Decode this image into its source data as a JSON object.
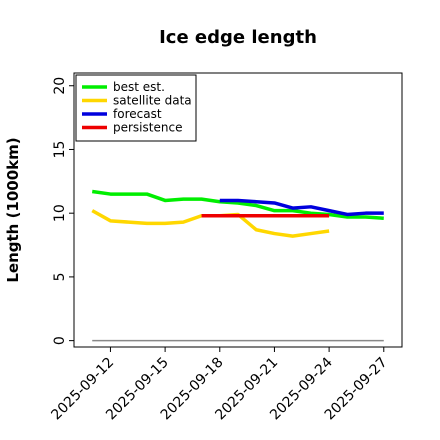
{
  "chart_data": {
    "type": "line",
    "title": "Ice edge length",
    "xlabel": "",
    "ylabel": "Length (1000km)",
    "ylim": [
      -0.5,
      21
    ],
    "xlim": [
      "2025-09-10",
      "2025-09-28"
    ],
    "grid": false,
    "legend_position": "top-left",
    "y_ticks": [
      0,
      5,
      10,
      15,
      20
    ],
    "x_ticks": [
      "2025-09-12",
      "2025-09-15",
      "2025-09-18",
      "2025-09-21",
      "2025-09-24",
      "2025-09-27"
    ],
    "highlighted_x_tick": "2025-09-18",
    "highlight_color": "#228b22",
    "series": [
      {
        "name": "best est.",
        "color": "#00ee00",
        "x": [
          "2025-09-11",
          "2025-09-12",
          "2025-09-13",
          "2025-09-14",
          "2025-09-15",
          "2025-09-16",
          "2025-09-17",
          "2025-09-18",
          "2025-09-19",
          "2025-09-20",
          "2025-09-21",
          "2025-09-22",
          "2025-09-23",
          "2025-09-24",
          "2025-09-25",
          "2025-09-26",
          "2025-09-27"
        ],
        "values": [
          11.7,
          11.5,
          11.5,
          11.5,
          11.0,
          11.1,
          11.1,
          10.9,
          10.8,
          10.6,
          10.2,
          10.2,
          10.0,
          9.9,
          9.7,
          9.7,
          9.6
        ]
      },
      {
        "name": "satellite data",
        "color": "#ffd700",
        "x": [
          "2025-09-11",
          "2025-09-12",
          "2025-09-13",
          "2025-09-14",
          "2025-09-15",
          "2025-09-16",
          "2025-09-17",
          "2025-09-18",
          "2025-09-19",
          "2025-09-20",
          "2025-09-21",
          "2025-09-22",
          "2025-09-23",
          "2025-09-24"
        ],
        "values": [
          10.2,
          9.4,
          9.3,
          9.2,
          9.2,
          9.3,
          9.8,
          9.8,
          9.9,
          8.7,
          8.4,
          8.2,
          8.4,
          8.6
        ]
      },
      {
        "name": "forecast",
        "color": "#0000dd",
        "x": [
          "2025-09-18",
          "2025-09-19",
          "2025-09-20",
          "2025-09-21",
          "2025-09-22",
          "2025-09-23",
          "2025-09-24",
          "2025-09-25",
          "2025-09-26",
          "2025-09-27"
        ],
        "values": [
          11.0,
          11.0,
          10.9,
          10.8,
          10.4,
          10.5,
          10.2,
          9.9,
          10.0,
          10.0
        ]
      },
      {
        "name": "persistence",
        "color": "#ee0000",
        "x": [
          "2025-09-17",
          "2025-09-18",
          "2025-09-19",
          "2025-09-20",
          "2025-09-21",
          "2025-09-22",
          "2025-09-23",
          "2025-09-24"
        ],
        "values": [
          9.8,
          9.8,
          9.8,
          9.8,
          9.8,
          9.8,
          9.8,
          9.8
        ]
      }
    ],
    "reference_line": {
      "color": "#888888",
      "x": [
        "2025-09-11",
        "2025-09-27"
      ],
      "values": [
        0,
        0
      ]
    }
  }
}
